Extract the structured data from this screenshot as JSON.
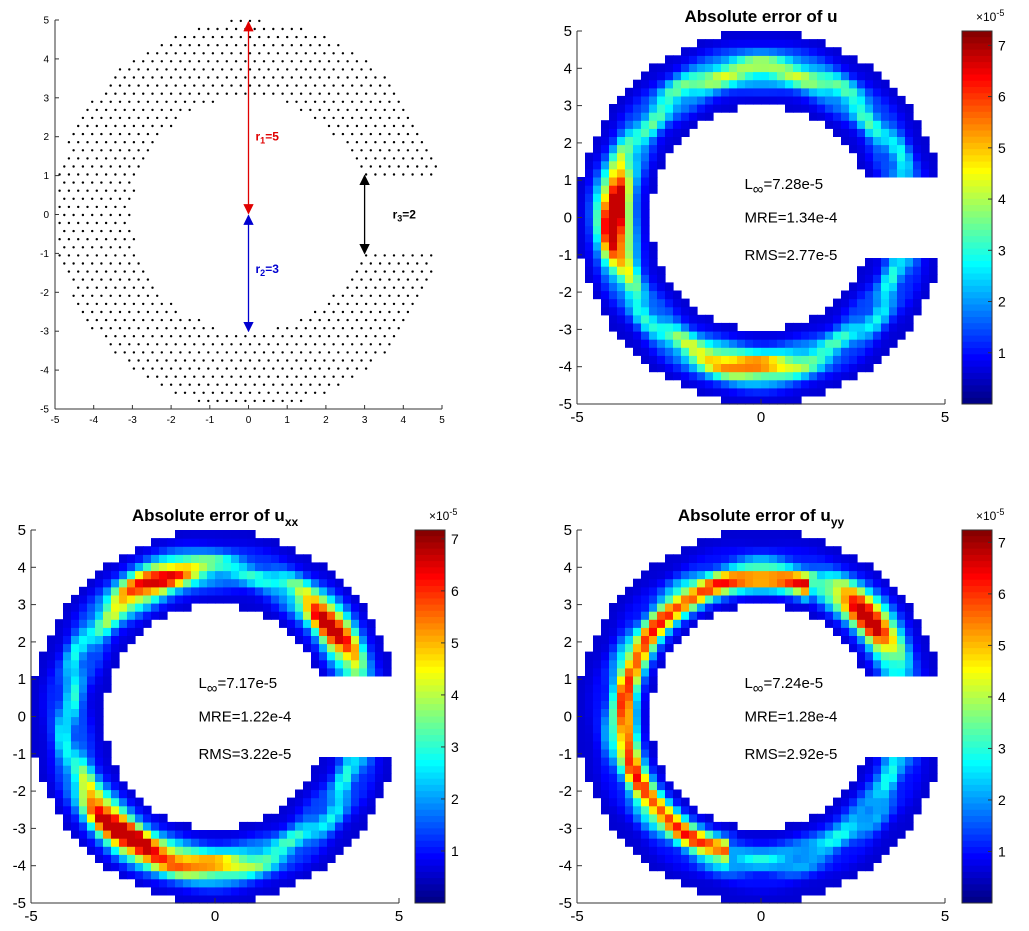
{
  "chart_data": [
    {
      "type": "scatter",
      "description_kind": "node distribution",
      "title": "",
      "xlim": [
        -5,
        5
      ],
      "ylim": [
        -5,
        5
      ],
      "xticks": [
        "-5",
        "-4",
        "-3",
        "-2",
        "-1",
        "0",
        "1",
        "2",
        "3",
        "4",
        "5"
      ],
      "yticks": [
        "5",
        "4",
        "3",
        "2",
        "1",
        "0",
        "-1",
        "-2",
        "-3",
        "-4",
        "-5"
      ],
      "domain": {
        "r_outer": 5,
        "r_inner": 3,
        "gap_half_width": 1
      },
      "annotations": {
        "r1": {
          "label": "r",
          "sub": "1",
          "rest": "=5",
          "color": "#e00000"
        },
        "r2": {
          "label": "r",
          "sub": "2",
          "rest": "=3",
          "color": "#0000d0"
        },
        "r3": {
          "label": "r",
          "sub": "3",
          "rest": "=2",
          "color": "#000000"
        }
      }
    },
    {
      "type": "heatmap",
      "title_main": "Absolute error of u",
      "title_sub": "",
      "xlim": [
        -5,
        5
      ],
      "ylim": [
        -5,
        5
      ],
      "xticks": [
        "-5",
        "0",
        "5"
      ],
      "yticks": [
        "5",
        "4",
        "3",
        "2",
        "1",
        "0",
        "-1",
        "-2",
        "-3",
        "-4",
        "-5"
      ],
      "colorbar": {
        "exponent": "×10",
        "power": "-5",
        "ticks": [
          "7",
          "6",
          "5",
          "4",
          "3",
          "2",
          "1"
        ],
        "max": 7.28
      },
      "stats": {
        "linf_label": "L",
        "linf_sub": "∞",
        "linf_value": "=7.28e-5",
        "mre": "MRE=1.34e-4",
        "rms": "RMS=2.77e-5"
      }
    },
    {
      "type": "heatmap",
      "title_main": "Absolute error of u",
      "title_sub": "xx",
      "xlim": [
        -5,
        5
      ],
      "ylim": [
        -5,
        5
      ],
      "xticks": [
        "-5",
        "0",
        "5"
      ],
      "yticks": [
        "5",
        "4",
        "3",
        "2",
        "1",
        "0",
        "-1",
        "-2",
        "-3",
        "-4",
        "-5"
      ],
      "colorbar": {
        "exponent": "×10",
        "power": "-5",
        "ticks": [
          "7",
          "6",
          "5",
          "4",
          "3",
          "2",
          "1"
        ],
        "max": 7.17
      },
      "stats": {
        "linf_label": "L",
        "linf_sub": "∞",
        "linf_value": "=7.17e-5",
        "mre": "MRE=1.22e-4",
        "rms": "RMS=3.22e-5"
      }
    },
    {
      "type": "heatmap",
      "title_main": "Absolute error of u",
      "title_sub": "yy",
      "xlim": [
        -5,
        5
      ],
      "ylim": [
        -5,
        5
      ],
      "xticks": [
        "-5",
        "0",
        "5"
      ],
      "yticks": [
        "5",
        "4",
        "3",
        "2",
        "1",
        "0",
        "-1",
        "-2",
        "-3",
        "-4",
        "-5"
      ],
      "colorbar": {
        "exponent": "×10",
        "power": "-5",
        "ticks": [
          "7",
          "6",
          "5",
          "4",
          "3",
          "2",
          "1"
        ],
        "max": 7.24
      },
      "stats": {
        "linf_label": "L",
        "linf_sub": "∞",
        "linf_value": "=7.24e-5",
        "mre": "MRE=1.28e-4",
        "rms": "RMS=2.92e-5"
      }
    }
  ],
  "colors": {
    "low": "#00008f",
    "mid": "#00ffff",
    "high": "#800000",
    "background": "#ffffff"
  }
}
